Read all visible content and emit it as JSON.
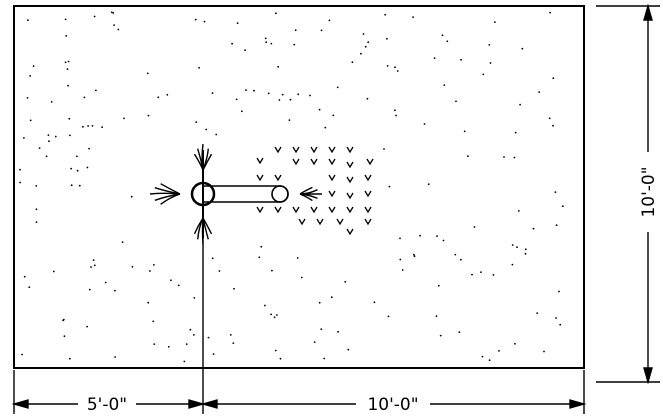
{
  "drawing": {
    "dimensions": {
      "bottom_left": "5'-0\"",
      "bottom_right": "10'-0\"",
      "right_vertical": "10'-0\""
    },
    "line_color": "#000000",
    "background_color": "#ffffff"
  }
}
